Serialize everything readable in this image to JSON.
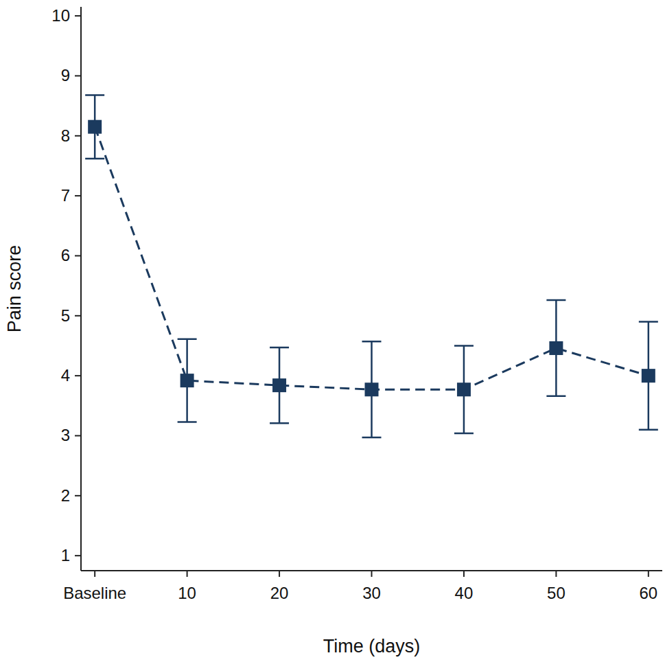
{
  "chart_data": {
    "type": "line",
    "x_label": "Time (days)",
    "y_label": "Pain score",
    "x": [
      0,
      10,
      20,
      30,
      40,
      50,
      60
    ],
    "series": [
      {
        "color": "#1b3a5e",
        "marker": "square",
        "line_style": "dashed",
        "values": [
          8.15,
          3.92,
          3.84,
          3.77,
          3.77,
          4.46,
          4.0
        ],
        "errors": [
          0.53,
          0.69,
          0.63,
          0.8,
          0.73,
          0.8,
          0.9
        ]
      }
    ],
    "xlim": [
      -1.5,
      61.5
    ],
    "xticks": [
      {
        "value": 0,
        "label": "Baseline"
      },
      10,
      20,
      30,
      40,
      50,
      60
    ],
    "ylim": [
      0.75,
      10.15
    ],
    "yticks": [
      1,
      2,
      3,
      4,
      5,
      6,
      7,
      8,
      9,
      10
    ],
    "grid": false
  }
}
